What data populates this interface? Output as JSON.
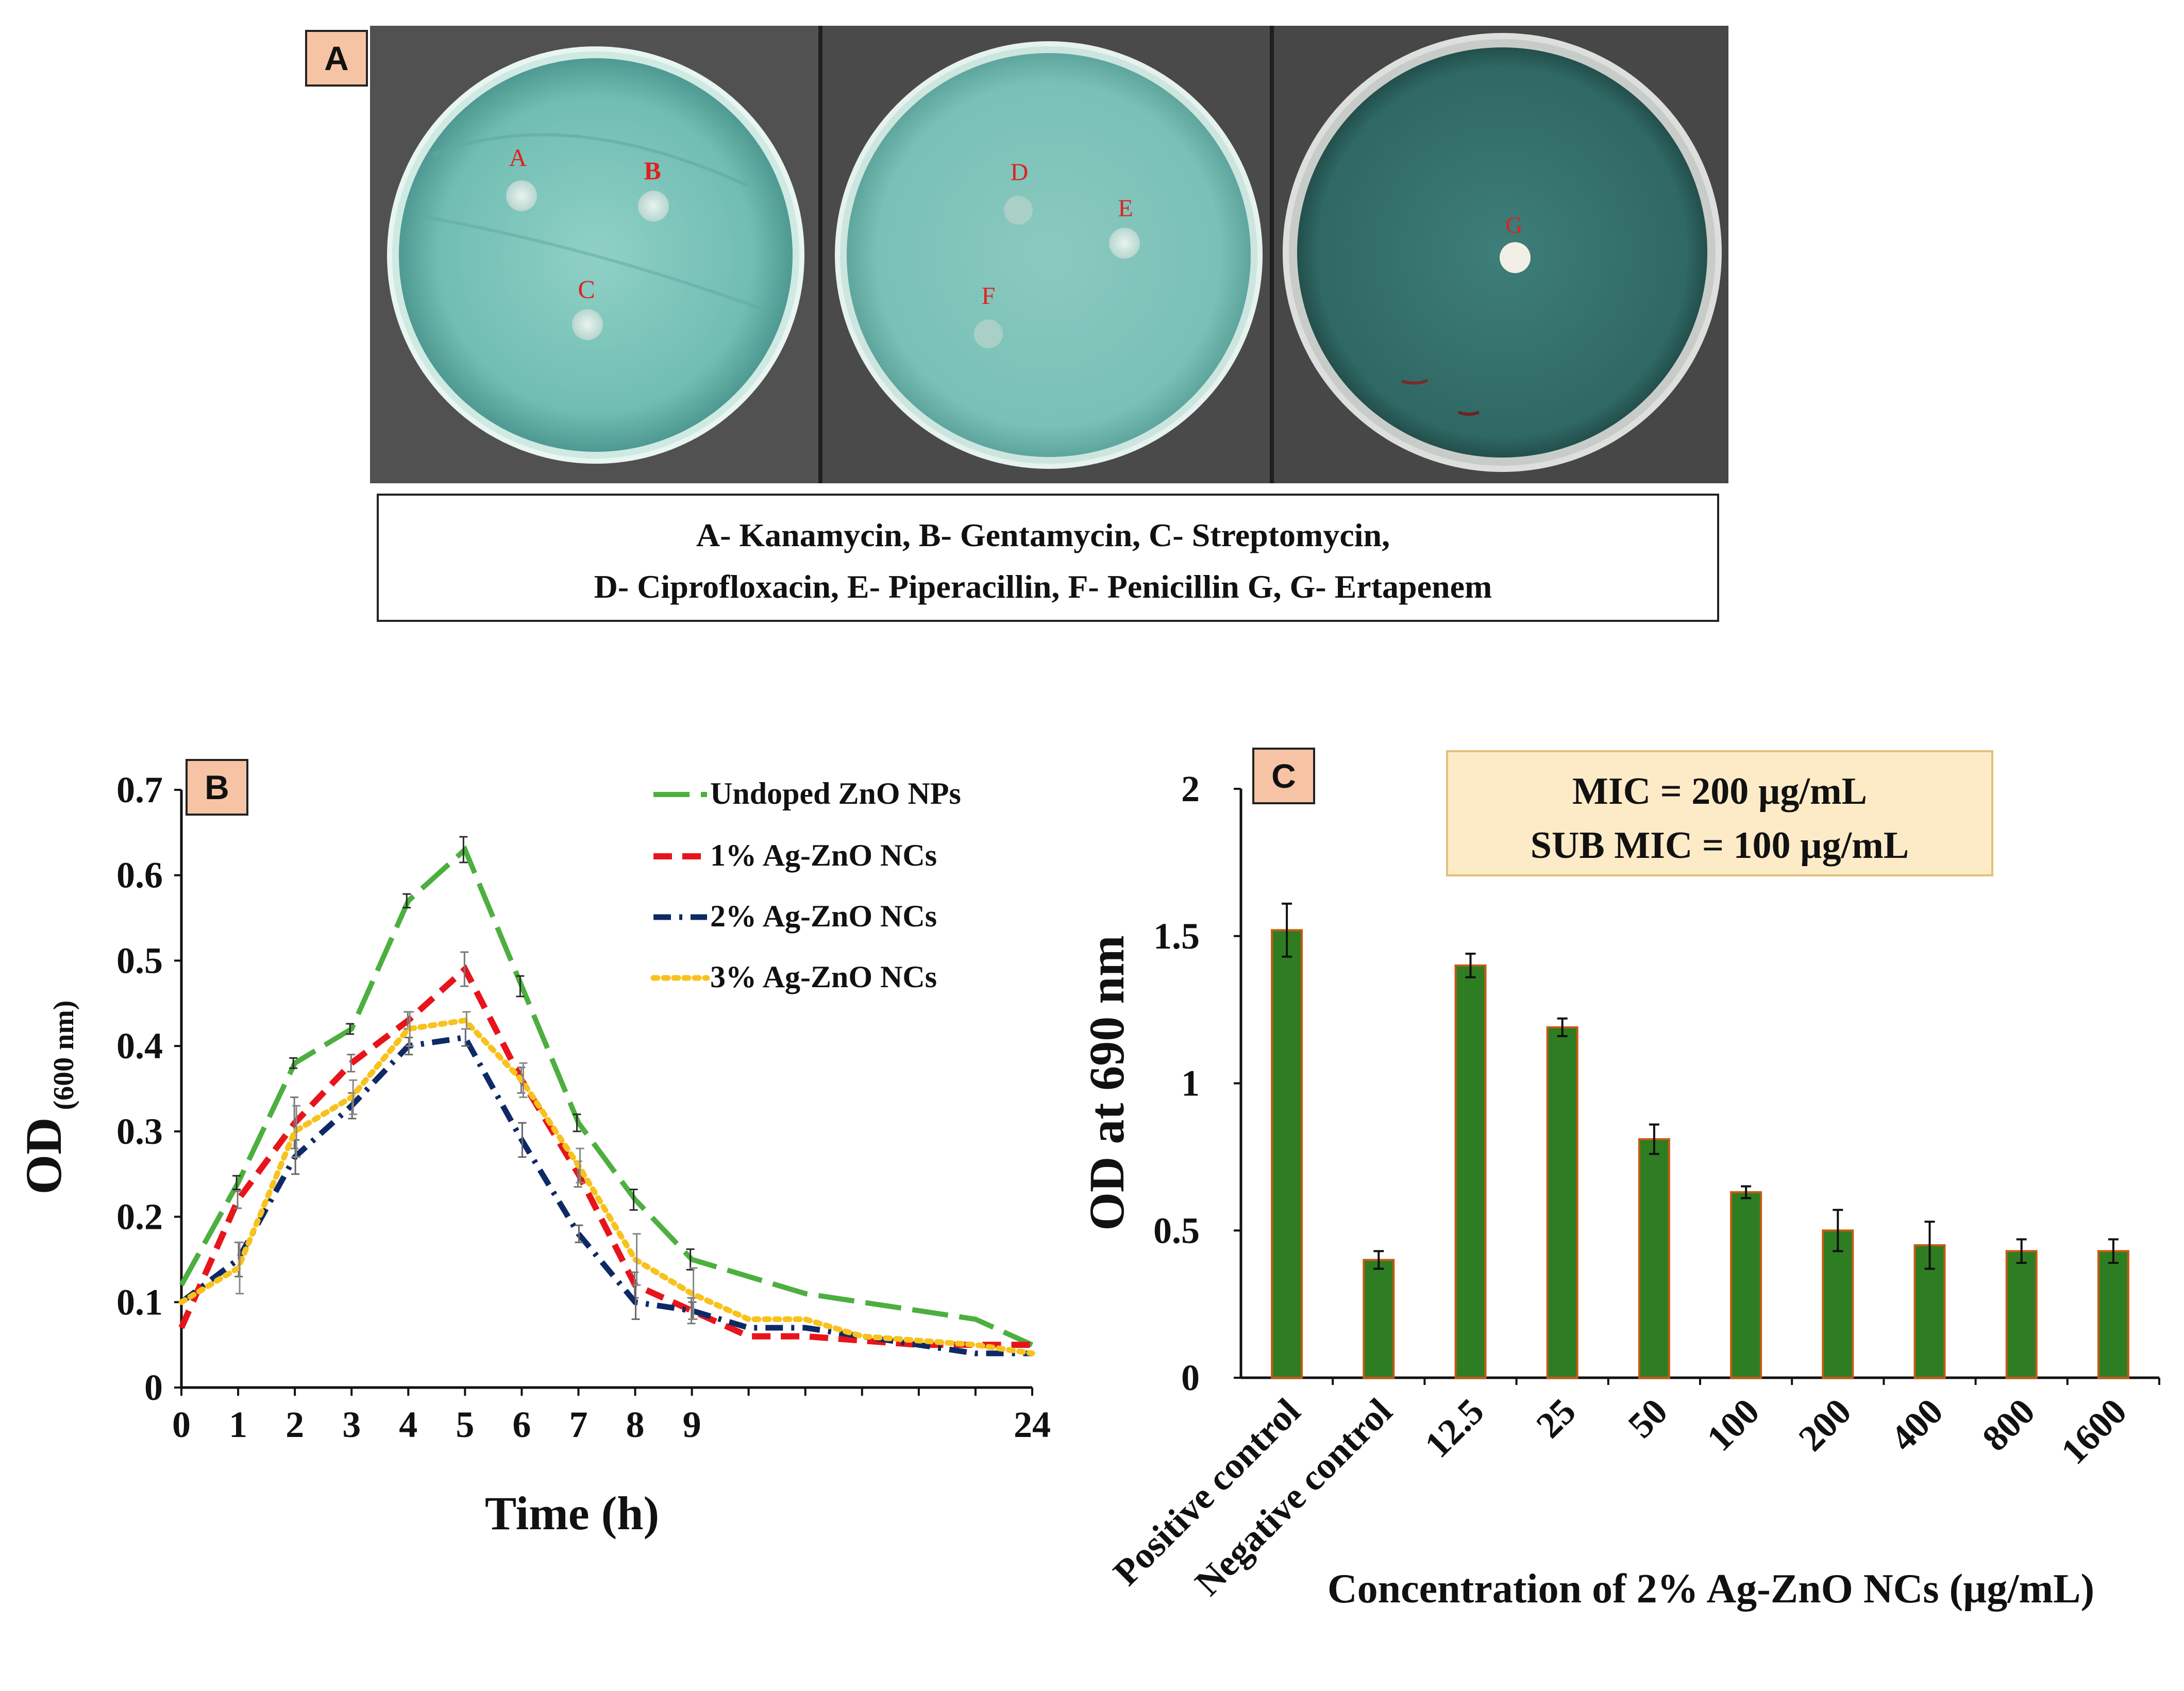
{
  "panel_a": {
    "badge": "A",
    "dish_labels": [
      "A",
      "B",
      "C",
      "D",
      "E",
      "F",
      "G"
    ],
    "legend_lines": [
      "A- Kanamycin, B- Gentamycin, C- Streptomycin,",
      "D- Ciprofloxacin,  E- Piperacillin, F- Penicillin G, G- Ertapenem"
    ]
  },
  "colors": {
    "undoped": "#4CAF3F",
    "ag1": "#E8141B",
    "ag2": "#0D2A66",
    "ag3": "#F8C21C",
    "bar_fill": "#2E7D22",
    "bar_edge": "#C65A14",
    "badge_bg": "#F6C4A5",
    "mic_bg": "#FDEBC7",
    "mic_border": "#E2C07A",
    "agar": "#6fb8b0",
    "agar_dark": "#3f7f7a"
  },
  "chart_data": [
    {
      "type": "line",
      "badge": "B",
      "ylabel_main": "OD",
      "ylabel_sub": "(600 nm)",
      "xlabel": "Time (h)",
      "x_positions": [
        0,
        1,
        2,
        3,
        4,
        5,
        6,
        7,
        8,
        9,
        10,
        11,
        12,
        13,
        14,
        15
      ],
      "x_tick_labels": [
        "0",
        "1",
        "2",
        "3",
        "4",
        "5",
        "6",
        "7",
        "8",
        "9",
        "24"
      ],
      "ylim": [
        0,
        0.7
      ],
      "y_ticks": [
        "0",
        "0.1",
        "0.2",
        "0.3",
        "0.4",
        "0.5",
        "0.6",
        "0.7"
      ],
      "series": [
        {
          "name": "Undoped ZnO NPs",
          "style": "long-dash",
          "values": [
            0.12,
            0.24,
            0.38,
            0.42,
            0.57,
            0.63,
            0.47,
            0.31,
            0.22,
            0.15,
            0.13,
            0.11,
            0.1,
            0.09,
            0.08,
            0.05
          ],
          "errors": [
            0,
            0.008,
            0.006,
            0.006,
            0.008,
            0.015,
            0.012,
            0.01,
            0.012,
            0.012,
            0,
            0,
            0,
            0,
            0,
            0
          ]
        },
        {
          "name": "1% Ag-ZnO NCs",
          "style": "dash",
          "values": [
            0.07,
            0.22,
            0.31,
            0.38,
            0.43,
            0.49,
            0.36,
            0.25,
            0.12,
            0.09,
            0.06,
            0.06,
            0.055,
            0.05,
            0.05,
            0.05
          ],
          "errors": [
            0,
            0.01,
            0.03,
            0.01,
            0.01,
            0.02,
            0.015,
            0.015,
            0.015,
            0.015,
            0,
            0,
            0,
            0,
            0,
            0
          ]
        },
        {
          "name": "2% Ag-ZnO NCs",
          "style": "dash-dot",
          "values": [
            0.1,
            0.15,
            0.27,
            0.33,
            0.4,
            0.41,
            0.29,
            0.18,
            0.1,
            0.09,
            0.07,
            0.07,
            0.06,
            0.05,
            0.04,
            0.04
          ],
          "errors": [
            0,
            0.02,
            0.02,
            0.015,
            0.01,
            0.01,
            0.02,
            0.01,
            0.02,
            0.01,
            0,
            0,
            0,
            0,
            0,
            0
          ]
        },
        {
          "name": "3% Ag-ZnO NCs",
          "style": "dot",
          "values": [
            0.1,
            0.14,
            0.3,
            0.34,
            0.42,
            0.43,
            0.36,
            0.26,
            0.15,
            0.11,
            0.08,
            0.08,
            0.06,
            0.055,
            0.05,
            0.04
          ],
          "errors": [
            0,
            0.03,
            0.03,
            0.02,
            0.02,
            0.01,
            0.02,
            0.02,
            0.03,
            0.03,
            0,
            0,
            0,
            0,
            0,
            0
          ]
        }
      ]
    },
    {
      "type": "bar",
      "badge": "C",
      "ylabel": "OD at 690 nm",
      "xlabel": "Concentration of 2% Ag-ZnO NCs  (µg/mL)",
      "categories": [
        "Positive control",
        "Negative control",
        "12.5",
        "25",
        "50",
        "100",
        "200",
        "400",
        "800",
        "1600"
      ],
      "values": [
        1.52,
        0.4,
        1.4,
        1.19,
        0.81,
        0.63,
        0.5,
        0.45,
        0.43,
        0.43
      ],
      "errors": [
        0.09,
        0.03,
        0.04,
        0.03,
        0.05,
        0.02,
        0.07,
        0.08,
        0.04,
        0.04
      ],
      "ylim": [
        0,
        2
      ],
      "y_ticks": [
        "0",
        "0.5",
        "1",
        "1.5",
        "2"
      ],
      "mic_lines": [
        "MIC = 200 µg/mL",
        "SUB MIC = 100 µg/mL"
      ]
    }
  ]
}
